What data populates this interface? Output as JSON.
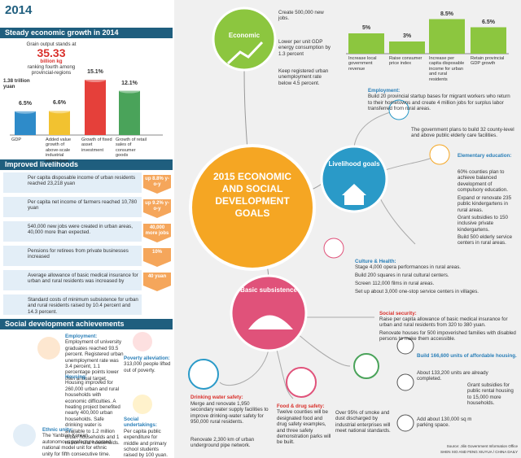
{
  "header": {
    "year": "2014"
  },
  "growth": {
    "title": "Steady economic growth in 2014",
    "grain_intro": "Grain output stands at",
    "grain_value": "35.33",
    "grain_unit": "billion kg",
    "grain_rank": "ranking fourth among provincial-regions",
    "gdp_total": "1.38 trillion yuan",
    "bars": [
      {
        "name": "GDP",
        "value": 6.5,
        "label": "6.5%",
        "color": "#2e8bc9"
      },
      {
        "name": "Added value growth of above-scale industrial enterprises",
        "value": 6.6,
        "label": "6.6%",
        "color": "#f2c230"
      },
      {
        "name": "Growth of fixed asset investment",
        "value": 15.1,
        "label": "15.1%",
        "color": "#e5403a"
      },
      {
        "name": "Growth of retail sales of consumer goods",
        "value": 12.1,
        "label": "12.1%",
        "color": "#4aa35a"
      }
    ]
  },
  "livelihoods": {
    "title": "Improved livelihoods",
    "rows": [
      {
        "text": "Per capita disposable income of urban residents reached 23,218 yuan",
        "badge": "up 8.8% y-o-y"
      },
      {
        "text": "Per capita net income of farmers reached 10,780 yuan",
        "badge": "up 9.2% y-o-y"
      },
      {
        "text": "540,000 new jobs were created in urban areas, 40,000 more than expected.",
        "badge": "40,000 more jobs"
      },
      {
        "text": "Pensions for retirees from private businesses increased",
        "badge": "10%"
      },
      {
        "text": "Average allowance of basic medical insurance for urban and rural residents was increased by",
        "badge": "40 yuan"
      },
      {
        "text": "Standard costs of minimum subsistence for urban and rural residents raised by 10.4 percent and 14.3 percent.",
        "badge": null
      }
    ]
  },
  "social": {
    "title": "Social development achievements",
    "items": [
      {
        "heading": "Employment:",
        "text": "Employment of university graduates reached 93.5 percent. Registered urban unemployment rate was 3.4 percent, 1.1 percentage points lower than annual target."
      },
      {
        "heading": "Housing:",
        "text": "Housing improved for 260,000 urban and rural households with economic difficulties. A heating project benefited nearly 400,000 urban households. Safe drinking water is available to 1.2 million urban households and 1 million rural households."
      },
      {
        "heading": "Ethnic unity:",
        "text": "The Yanbian Korean autonomous prefecture named national model unit for ethnic unity for fifth consecutive time."
      },
      {
        "heading": "Poverty alleviation:",
        "text": "313,000 people lifted out of poverty."
      },
      {
        "heading": "Social undertakings:",
        "text": "Per capita public expenditure for middle and primary school students raised by 100 yuan."
      }
    ]
  },
  "goals": {
    "title": "2015 ECONOMIC AND SOCIAL DEVELOPMENT GOALS",
    "economic": {
      "label": "Economic",
      "items": [
        "Create 500,000 new jobs.",
        "Lower per unit GDP energy consumption by 1.3 percent",
        "Keep registered urban unemployment rate below 4.5 percent."
      ],
      "bars": [
        {
          "name": "Increase local government revenue",
          "value": 5,
          "label": "5%"
        },
        {
          "name": "Raise consumer price index",
          "value": 3,
          "label": "3%"
        },
        {
          "name": "Increase per capita disposable income for urban and rural residents",
          "value": 8.5,
          "label": "8.5%"
        },
        {
          "name": "Retain provincial GDP growth",
          "value": 6.5,
          "label": "6.5%"
        }
      ]
    },
    "livelihood": {
      "label": "Livelihood goals",
      "employment": {
        "heading": "Employment:",
        "text": "Build 20 provincial startup bases for migrant workers who return to their hometowns and create 4 million jobs for surplus labor transferred from rural areas."
      },
      "elderly": "The government plans to build 32 county-level and above public elderly care facilities.",
      "education": {
        "heading": "Elementary education:",
        "items": [
          "60% counties plan to achieve balanced development of compulsory education.",
          "Expand or renovate 235 public kindergartens in rural areas.",
          "Grant subsidies to 150 inclusive private kindergartens.",
          "Build 500 elderly service centers in rural areas."
        ]
      },
      "culture": {
        "heading": "Culture & Health:",
        "items": [
          "Stage 4,000 opera performances in rural areas.",
          "Build 200 squares in rural cultural centers.",
          "Screen 112,000 films in rural areas.",
          "Set up about 3,000 one-stop service centers in villages."
        ]
      }
    },
    "subsistence": {
      "label": "Basic subsistence",
      "security": {
        "heading": "Social security:",
        "items": [
          "Raise per capita allowance of basic medical insurance for urban and rural residents from 320 to 380 yuan.",
          "Renovate houses for 500 impoverished families with disabled persons to make them accessible."
        ]
      },
      "housing": [
        "Build 166,600 units of affordable housing.",
        "About 133,200 units are already completed.",
        "Grant subsidies for public rental housing to 15,000 more households.",
        "Add about 130,000 sq m parking space."
      ],
      "water": {
        "heading": "Drinking water safety:",
        "items": [
          "Merge and renovate 1,950 secondary water supply facilities to improve drinking-water safety for 950,000 rural residents.",
          "Renovate 2,300 km of urban underground pipe network."
        ]
      },
      "food": {
        "heading": "Food & drug safety:",
        "text": "Twelve counties will be designated food and drug safety examples, and three safety demonstration parks will be built."
      },
      "smoke": "Over 95% of smoke and dust discharged by industrial enterprises will meet national standards."
    }
  },
  "source": "Source: Jilin Government Information Office",
  "credit": "SHEN XIO AND FENG XIUYUA / CHINA DAILY"
}
